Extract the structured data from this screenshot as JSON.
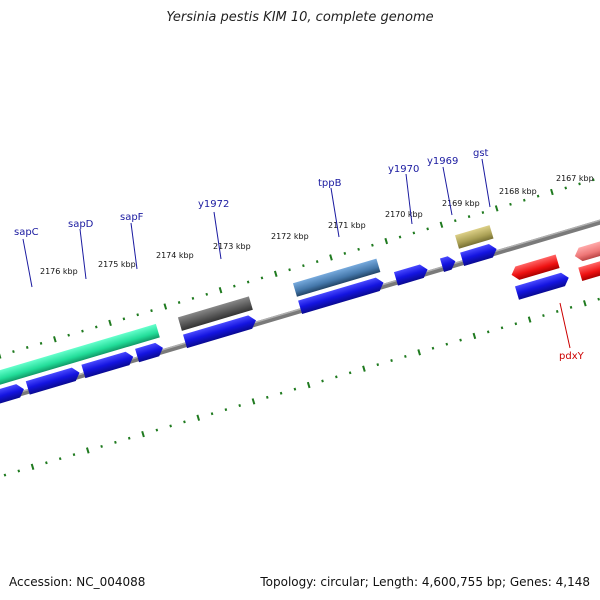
{
  "title": "Yersinia pestis KIM 10, complete genome",
  "footer": {
    "accession": "Accession: NC_004088",
    "summary": "Topology: circular; Length: 4,600,755 bp; Genes: 4,148"
  },
  "colors": {
    "backbone": "#7a7a7a",
    "ticks": "#1f7a1f",
    "label_blue": "#1a1aa0",
    "label_red": "#cc0000",
    "gene_blue": "#1414e0"
  },
  "scale_labels": [
    "2176 kbp",
    "2175 kbp",
    "2174 kbp",
    "2173 kbp",
    "2172 kbp",
    "2171 kbp",
    "2170 kbp",
    "2169 kbp",
    "2168 kbp",
    "2167 kbp"
  ],
  "gene_labels": [
    {
      "name": "sapC",
      "color": "#1a1aa0"
    },
    {
      "name": "sapD",
      "color": "#1a1aa0"
    },
    {
      "name": "sapF",
      "color": "#1a1aa0"
    },
    {
      "name": "y1972",
      "color": "#1a1aa0"
    },
    {
      "name": "tppB",
      "color": "#1a1aa0"
    },
    {
      "name": "y1970",
      "color": "#1a1aa0"
    },
    {
      "name": "y1969",
      "color": "#1a1aa0"
    },
    {
      "name": "gst",
      "color": "#1a1aa0"
    },
    {
      "name": "pdxY",
      "color": "#cc0000"
    }
  ],
  "feature_colors": {
    "sap_cog": "#22dd99",
    "y1972_cog": "#555555",
    "tppB_cog": "#4477aa",
    "gst_cog": "#aaa055",
    "pdxY_cog": "#ee1111",
    "pdxY_next": "#ee7777"
  }
}
